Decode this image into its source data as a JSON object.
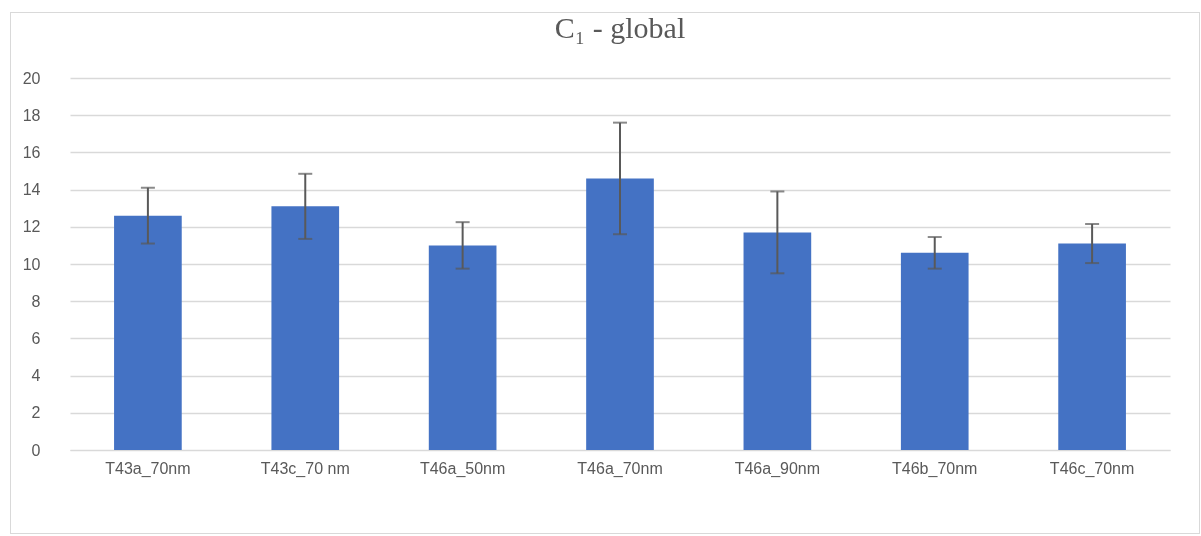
{
  "chart_data": {
    "type": "bar",
    "title": "C₁ - global",
    "categories": [
      "T43a_70nm",
      "T43c_70 nm",
      "T46a_50nm",
      "T46a_70nm",
      "T46a_90nm",
      "T46b_70nm",
      "T46c_70nm"
    ],
    "values": [
      12.6,
      13.1,
      11.0,
      14.6,
      11.7,
      10.6,
      11.1
    ],
    "errors": [
      1.5,
      1.75,
      1.25,
      3.0,
      2.2,
      0.85,
      1.05
    ],
    "color": "#4472c4",
    "ylim": [
      0,
      20
    ],
    "yticks": [
      0,
      2,
      4,
      6,
      8,
      10,
      12,
      14,
      16,
      18,
      20
    ],
    "grid": "y"
  }
}
